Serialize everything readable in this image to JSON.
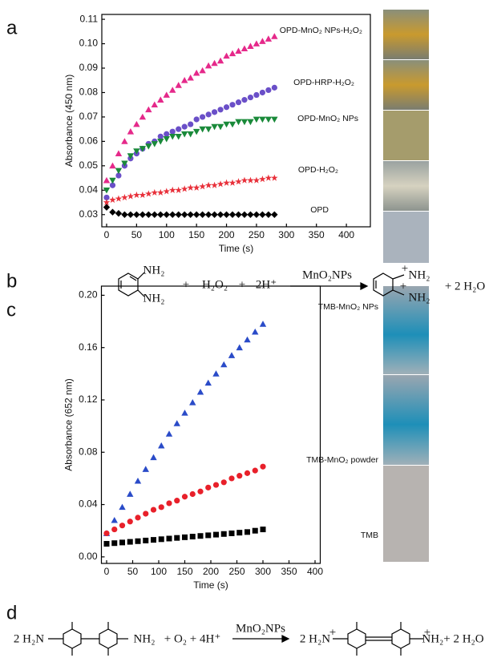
{
  "panel_labels": [
    "a",
    "b",
    "c",
    "d"
  ],
  "equation_b": [
    "NH₂",
    "NH₂",
    "+",
    "H₂O₂",
    "+",
    "2H⁺",
    "MnO₂NPs",
    "+",
    "NH₂",
    "+",
    "NH₂",
    "+ 2 H₂O"
  ],
  "equation_d": [
    "2 H₂N",
    "NH₂",
    "+ O₂ + 4H⁺",
    "MnO₂NPs",
    "2 H₂N",
    "+",
    "+",
    "NH₂+ 2 H₂O"
  ],
  "chart_data": [
    {
      "type": "scatter",
      "xlabel": "Time (s)",
      "ylabel": "Absorbance (450 nm)",
      "xlim": [
        -8,
        440
      ],
      "ylim": [
        0.025,
        0.112
      ],
      "xticks": [
        0,
        50,
        100,
        150,
        200,
        250,
        300,
        350,
        400
      ],
      "yticks": [
        0.03,
        0.04,
        0.05,
        0.06,
        0.07,
        0.08,
        0.09,
        {
          "value": 0.1,
          "label": "0.10"
        },
        0.11
      ],
      "x": [
        0,
        10,
        20,
        30,
        40,
        50,
        60,
        70,
        80,
        90,
        100,
        110,
        120,
        130,
        140,
        150,
        160,
        170,
        180,
        190,
        200,
        210,
        220,
        230,
        240,
        250,
        260,
        270,
        280
      ],
      "series": [
        {
          "name": "OPD-MnO₂ NPs-H₂O₂",
          "color": "#e5298a",
          "marker": "triangle-up",
          "values": [
            0.044,
            0.05,
            0.055,
            0.06,
            0.064,
            0.067,
            0.07,
            0.073,
            0.075,
            0.077,
            0.079,
            0.081,
            0.083,
            0.085,
            0.086,
            0.088,
            0.089,
            0.091,
            0.092,
            0.093,
            0.095,
            0.096,
            0.097,
            0.098,
            0.099,
            0.1,
            0.101,
            0.102,
            0.103
          ]
        },
        {
          "name": "OPD-HRP-H₂O₂",
          "color": "#6a4fc8",
          "marker": "circle",
          "values": [
            0.037,
            0.042,
            0.046,
            0.05,
            0.053,
            0.055,
            0.057,
            0.059,
            0.06,
            0.062,
            0.063,
            0.064,
            0.065,
            0.066,
            0.067,
            0.069,
            0.07,
            0.071,
            0.072,
            0.073,
            0.074,
            0.075,
            0.076,
            0.077,
            0.078,
            0.079,
            0.08,
            0.081,
            0.082
          ]
        },
        {
          "name": "OPD-MnO₂ NPs",
          "color": "#1a8a3a",
          "marker": "triangle-down",
          "values": [
            0.04,
            0.044,
            0.048,
            0.051,
            0.054,
            0.056,
            0.057,
            0.058,
            0.059,
            0.06,
            0.061,
            0.062,
            0.062,
            0.063,
            0.063,
            0.064,
            0.065,
            0.065,
            0.066,
            0.066,
            0.067,
            0.067,
            0.068,
            0.068,
            0.068,
            0.069,
            0.069,
            0.069,
            0.069
          ]
        },
        {
          "name": "OPD-H₂O₂",
          "color": "#e8303a",
          "marker": "star",
          "values": [
            0.035,
            0.036,
            0.0365,
            0.037,
            0.0375,
            0.038,
            0.038,
            0.0385,
            0.039,
            0.039,
            0.0395,
            0.04,
            0.04,
            0.0405,
            0.041,
            0.041,
            0.0415,
            0.042,
            0.042,
            0.0425,
            0.043,
            0.043,
            0.0435,
            0.044,
            0.044,
            0.044,
            0.0445,
            0.045,
            0.045
          ]
        },
        {
          "name": "OPD",
          "color": "#000000",
          "marker": "diamond",
          "values": [
            0.033,
            0.031,
            0.0305,
            0.03,
            0.03,
            0.03,
            0.03,
            0.03,
            0.03,
            0.03,
            0.03,
            0.03,
            0.03,
            0.03,
            0.03,
            0.03,
            0.03,
            0.03,
            0.03,
            0.03,
            0.03,
            0.03,
            0.03,
            0.03,
            0.03,
            0.03,
            0.03,
            0.03,
            0.03
          ]
        }
      ]
    },
    {
      "type": "scatter",
      "xlabel": "Time (s)",
      "ylabel": "Absorbance (652 nm)",
      "xlim": [
        -10,
        410
      ],
      "ylim": [
        -0.005,
        0.207
      ],
      "xticks": [
        0,
        50,
        100,
        150,
        200,
        250,
        300,
        350,
        400
      ],
      "yticks": [
        {
          "value": 0,
          "label": "0.00"
        },
        0.04,
        0.08,
        0.12,
        0.16,
        {
          "value": 0.2,
          "label": "0.20"
        }
      ],
      "x": [
        0,
        15,
        30,
        45,
        60,
        75,
        90,
        105,
        120,
        135,
        150,
        165,
        180,
        195,
        210,
        225,
        240,
        255,
        270,
        285,
        300
      ],
      "series": [
        {
          "name": "TMB-MnO₂ NPs",
          "color": "#2a4bc8",
          "marker": "triangle-up",
          "values": [
            0.018,
            0.028,
            0.038,
            0.048,
            0.058,
            0.067,
            0.076,
            0.085,
            0.094,
            0.102,
            0.11,
            0.118,
            0.126,
            0.133,
            0.14,
            0.147,
            0.154,
            0.16,
            0.166,
            0.172,
            0.178
          ]
        },
        {
          "name": "TMB-MnO₂ powder",
          "color": "#e8202a",
          "marker": "circle",
          "values": [
            0.018,
            0.021,
            0.024,
            0.027,
            0.03,
            0.033,
            0.036,
            0.038,
            0.041,
            0.043,
            0.046,
            0.048,
            0.05,
            0.053,
            0.055,
            0.057,
            0.06,
            0.062,
            0.064,
            0.066,
            0.069
          ]
        },
        {
          "name": "TMB",
          "color": "#000000",
          "marker": "square",
          "values": [
            0.01,
            0.0105,
            0.011,
            0.0115,
            0.012,
            0.0125,
            0.013,
            0.0135,
            0.014,
            0.0145,
            0.015,
            0.0155,
            0.016,
            0.0165,
            0.017,
            0.0175,
            0.018,
            0.0185,
            0.019,
            0.02,
            0.021
          ]
        }
      ]
    }
  ]
}
